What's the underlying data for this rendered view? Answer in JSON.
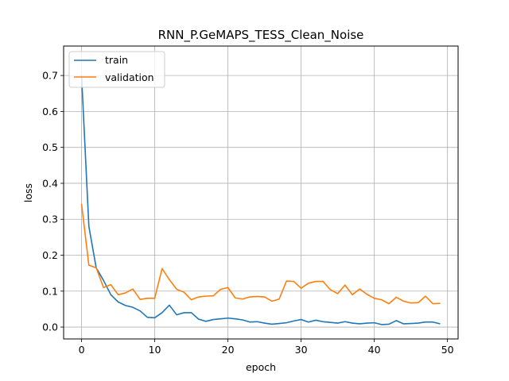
{
  "chart_data": {
    "type": "line",
    "title": "RNN_P.GeMAPS_TESS_Clean_Noise",
    "xlabel": "epoch",
    "ylabel": "loss",
    "xlim": [
      -2.45,
      51.45
    ],
    "ylim": [
      -0.033,
      0.782
    ],
    "xticks": [
      0,
      10,
      20,
      30,
      40,
      50
    ],
    "yticks": [
      0.0,
      0.1,
      0.2,
      0.3,
      0.4,
      0.5,
      0.6,
      0.7
    ],
    "grid": true,
    "legend": "top-left",
    "x": [
      0,
      1,
      2,
      3,
      4,
      5,
      6,
      7,
      8,
      9,
      10,
      11,
      12,
      13,
      14,
      15,
      16,
      17,
      18,
      19,
      20,
      21,
      22,
      23,
      24,
      25,
      26,
      27,
      28,
      29,
      30,
      31,
      32,
      33,
      34,
      35,
      36,
      37,
      38,
      39,
      40,
      41,
      42,
      43,
      44,
      45,
      46,
      47,
      48,
      49
    ],
    "series": [
      {
        "name": "train",
        "color": "#1f77b4",
        "values": [
          0.7,
          0.28,
          0.165,
          0.13,
          0.09,
          0.07,
          0.06,
          0.055,
          0.045,
          0.027,
          0.026,
          0.04,
          0.061,
          0.034,
          0.04,
          0.04,
          0.022,
          0.016,
          0.021,
          0.023,
          0.025,
          0.023,
          0.02,
          0.014,
          0.015,
          0.011,
          0.008,
          0.01,
          0.012,
          0.017,
          0.021,
          0.014,
          0.019,
          0.015,
          0.013,
          0.011,
          0.015,
          0.011,
          0.009,
          0.011,
          0.012,
          0.007,
          0.008,
          0.018,
          0.009,
          0.01,
          0.011,
          0.014,
          0.014,
          0.009
        ]
      },
      {
        "name": "validation",
        "color": "#ff7f0e",
        "values": [
          0.342,
          0.172,
          0.165,
          0.11,
          0.118,
          0.09,
          0.095,
          0.106,
          0.077,
          0.08,
          0.08,
          0.163,
          0.132,
          0.105,
          0.097,
          0.076,
          0.084,
          0.086,
          0.087,
          0.105,
          0.11,
          0.081,
          0.078,
          0.084,
          0.085,
          0.084,
          0.072,
          0.078,
          0.128,
          0.127,
          0.108,
          0.122,
          0.127,
          0.127,
          0.104,
          0.093,
          0.117,
          0.09,
          0.106,
          0.091,
          0.08,
          0.076,
          0.065,
          0.083,
          0.072,
          0.067,
          0.068,
          0.086,
          0.065,
          0.066
        ]
      }
    ]
  }
}
